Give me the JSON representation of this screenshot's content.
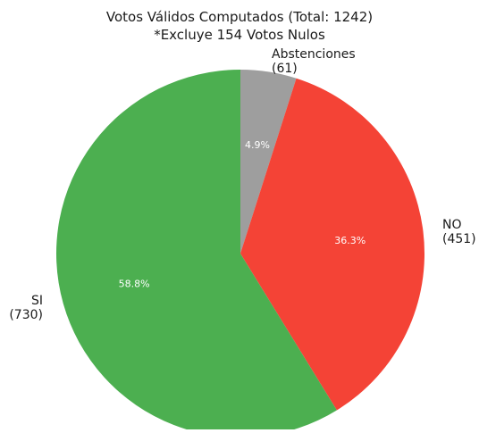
{
  "chart_data": {
    "type": "pie",
    "title": "Votos Válidos Computados (Total: 1242)",
    "subtitle": "*Excluye 154 Votos Nulos",
    "slices": [
      {
        "label": "Abstenciones",
        "count_label": "(61)",
        "value": 61,
        "percent_label": "4.9%",
        "color": "#9e9e9e"
      },
      {
        "label": "NO",
        "count_label": "(451)",
        "value": 451,
        "percent_label": "36.3%",
        "color": "#f44336"
      },
      {
        "label": "SI",
        "count_label": "(730)",
        "value": 730,
        "percent_label": "58.8%",
        "color": "#4caf50"
      }
    ],
    "start_angle": "top",
    "direction": "clockwise"
  }
}
